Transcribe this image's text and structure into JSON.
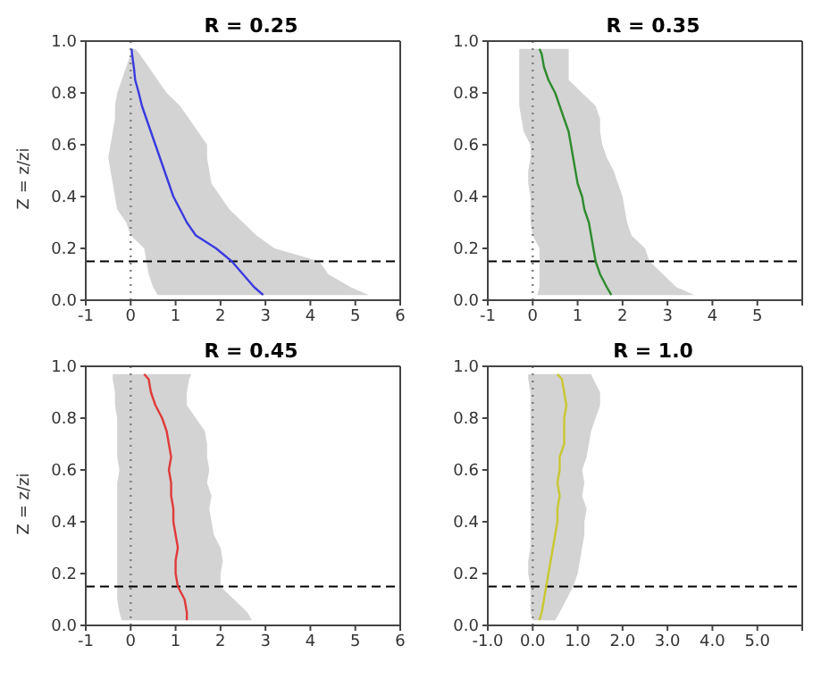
{
  "chart_data": [
    {
      "type": "line",
      "title": "R = 0.25",
      "ylabel": "Z = z/zi",
      "orientation": "horizontal",
      "x": [
        0.02,
        0.05,
        0.1,
        0.15,
        0.2,
        0.25,
        0.3,
        0.35,
        0.4,
        0.45,
        0.5,
        0.55,
        0.6,
        0.65,
        0.7,
        0.75,
        0.8,
        0.85,
        0.9,
        0.95,
        0.97
      ],
      "series": [
        {
          "color": "#3a3adf",
          "values": [
            2.95,
            2.75,
            2.5,
            2.25,
            1.9,
            1.45,
            1.25,
            1.1,
            0.95,
            0.85,
            0.75,
            0.65,
            0.55,
            0.45,
            0.35,
            0.25,
            0.18,
            0.1,
            0.07,
            0.03,
            0.02
          ],
          "lower": [
            0.6,
            0.5,
            0.4,
            0.35,
            0.3,
            0.0,
            -0.1,
            -0.3,
            -0.35,
            -0.4,
            -0.45,
            -0.5,
            -0.45,
            -0.4,
            -0.35,
            -0.35,
            -0.3,
            -0.2,
            -0.1,
            0.0,
            0.0
          ],
          "upper": [
            5.3,
            4.9,
            4.4,
            4.2,
            3.2,
            2.8,
            2.5,
            2.2,
            2.0,
            1.8,
            1.75,
            1.7,
            1.7,
            1.5,
            1.3,
            1.1,
            0.8,
            0.6,
            0.4,
            0.2,
            0.1
          ]
        }
      ],
      "xlim": [
        -1,
        6
      ],
      "xticks": [
        -1,
        0,
        1,
        2,
        3,
        4,
        5,
        6
      ],
      "ylim": [
        0,
        1
      ],
      "yticks": [
        {
          "value": 0,
          "label": "0.0"
        },
        {
          "value": 0.2,
          "label": "0.2"
        },
        {
          "value": 0.4,
          "label": "0.4"
        },
        {
          "value": 0.6,
          "label": "0.6"
        },
        {
          "value": 0.8,
          "label": "0.8"
        },
        {
          "value": 1,
          "label": "1.0"
        }
      ],
      "ref_lines": [
        {
          "axis": "x",
          "value": 0,
          "color": "#7f7f7f",
          "line_style": "dotted"
        },
        {
          "axis": "y",
          "value": 0.15,
          "color": "#000000",
          "line_style": "dashed"
        }
      ],
      "line_style": "solid",
      "marker": "none"
    },
    {
      "type": "line",
      "title": "R = 0.35",
      "orientation": "horizontal",
      "x": [
        0.02,
        0.05,
        0.1,
        0.15,
        0.2,
        0.25,
        0.3,
        0.35,
        0.4,
        0.45,
        0.5,
        0.55,
        0.6,
        0.65,
        0.7,
        0.75,
        0.8,
        0.85,
        0.9,
        0.95,
        0.97
      ],
      "series": [
        {
          "color": "#2e8b2e",
          "values": [
            1.75,
            1.65,
            1.5,
            1.4,
            1.35,
            1.3,
            1.25,
            1.15,
            1.1,
            1.0,
            0.95,
            0.9,
            0.85,
            0.8,
            0.7,
            0.6,
            0.5,
            0.35,
            0.25,
            0.2,
            0.15
          ],
          "lower": [
            0.1,
            0.15,
            0.15,
            0.15,
            0.15,
            0.0,
            -0.05,
            -0.05,
            -0.05,
            -0.1,
            -0.1,
            -0.05,
            -0.05,
            -0.2,
            -0.25,
            -0.3,
            -0.3,
            -0.3,
            -0.3,
            -0.3,
            -0.3
          ],
          "upper": [
            3.6,
            3.2,
            2.9,
            2.6,
            2.5,
            2.2,
            2.1,
            2.05,
            2.0,
            1.9,
            1.8,
            1.65,
            1.55,
            1.5,
            1.5,
            1.4,
            1.1,
            0.8,
            0.8,
            0.8,
            0.8
          ]
        }
      ],
      "xlim": [
        -1,
        6
      ],
      "xticks": [
        -1,
        0,
        1,
        2,
        3,
        4,
        5,
        {
          "value": 6,
          "label": null
        }
      ],
      "ylim": [
        0,
        1
      ],
      "yticks": [
        {
          "value": 0,
          "label": "0.0"
        },
        {
          "value": 0.2,
          "label": "0.2"
        },
        {
          "value": 0.4,
          "label": "0.4"
        },
        {
          "value": 0.6,
          "label": "0.6"
        },
        {
          "value": 0.8,
          "label": "0.8"
        },
        {
          "value": 1,
          "label": "1.0"
        }
      ],
      "ref_lines": [
        {
          "axis": "x",
          "value": 0,
          "color": "#7f7f7f",
          "line_style": "dotted"
        },
        {
          "axis": "y",
          "value": 0.15,
          "color": "#000000",
          "line_style": "dashed"
        }
      ],
      "line_style": "solid",
      "marker": "none"
    },
    {
      "type": "line",
      "title": "R = 0.45",
      "ylabel": "Z = z/zi",
      "orientation": "horizontal",
      "x": [
        0.02,
        0.05,
        0.1,
        0.15,
        0.2,
        0.25,
        0.3,
        0.35,
        0.4,
        0.45,
        0.5,
        0.55,
        0.6,
        0.65,
        0.7,
        0.75,
        0.8,
        0.85,
        0.9,
        0.95,
        0.97
      ],
      "series": [
        {
          "color": "#e03a3a",
          "values": [
            1.25,
            1.25,
            1.2,
            1.05,
            1.0,
            1.0,
            1.05,
            1.0,
            0.95,
            0.95,
            0.9,
            0.9,
            0.85,
            0.9,
            0.85,
            0.8,
            0.7,
            0.55,
            0.45,
            0.4,
            0.3
          ],
          "lower": [
            -0.2,
            -0.25,
            -0.3,
            -0.3,
            -0.3,
            -0.3,
            -0.3,
            -0.3,
            -0.3,
            -0.3,
            -0.3,
            -0.3,
            -0.25,
            -0.3,
            -0.3,
            -0.3,
            -0.3,
            -0.35,
            -0.35,
            -0.4,
            -0.4
          ],
          "upper": [
            2.7,
            2.6,
            2.3,
            2.0,
            2.0,
            2.05,
            2.0,
            1.85,
            1.8,
            1.75,
            1.8,
            1.7,
            1.75,
            1.7,
            1.7,
            1.65,
            1.45,
            1.25,
            1.25,
            1.3,
            1.35
          ]
        }
      ],
      "xlim": [
        -1,
        6
      ],
      "xticks": [
        -1,
        0,
        1,
        2,
        3,
        4,
        5,
        6
      ],
      "ylim": [
        0,
        1
      ],
      "yticks": [
        {
          "value": 0,
          "label": "0.0"
        },
        {
          "value": 0.2,
          "label": "0.2"
        },
        {
          "value": 0.4,
          "label": "0.4"
        },
        {
          "value": 0.6,
          "label": "0.6"
        },
        {
          "value": 0.8,
          "label": "0.8"
        },
        {
          "value": 1,
          "label": "1.0"
        }
      ],
      "ref_lines": [
        {
          "axis": "x",
          "value": 0,
          "color": "#7f7f7f",
          "line_style": "dotted"
        },
        {
          "axis": "y",
          "value": 0.15,
          "color": "#000000",
          "line_style": "dashed"
        }
      ],
      "line_style": "solid",
      "marker": "none"
    },
    {
      "type": "line",
      "title": "R = 1.0",
      "orientation": "horizontal",
      "x": [
        0.02,
        0.05,
        0.1,
        0.15,
        0.2,
        0.25,
        0.3,
        0.35,
        0.4,
        0.45,
        0.5,
        0.55,
        0.6,
        0.65,
        0.7,
        0.75,
        0.8,
        0.85,
        0.9,
        0.95,
        0.97
      ],
      "series": [
        {
          "color": "#c8c832",
          "values": [
            0.15,
            0.2,
            0.25,
            0.3,
            0.35,
            0.4,
            0.45,
            0.5,
            0.55,
            0.55,
            0.6,
            0.55,
            0.6,
            0.6,
            0.7,
            0.7,
            0.7,
            0.75,
            0.7,
            0.65,
            0.55
          ],
          "lower": [
            0.0,
            -0.05,
            -0.05,
            -0.05,
            -0.1,
            -0.1,
            -0.05,
            -0.05,
            -0.05,
            -0.05,
            -0.05,
            -0.05,
            -0.05,
            -0.05,
            -0.05,
            -0.05,
            -0.05,
            -0.05,
            -0.05,
            -0.1,
            -0.1
          ],
          "upper": [
            0.5,
            0.6,
            0.75,
            0.9,
            1.0,
            1.05,
            1.1,
            1.15,
            1.15,
            1.2,
            1.1,
            1.15,
            1.1,
            1.2,
            1.25,
            1.3,
            1.4,
            1.5,
            1.5,
            1.35,
            1.3
          ]
        }
      ],
      "xlim": [
        -1,
        6
      ],
      "xticks": [
        {
          "value": -1,
          "label": "-1.0"
        },
        {
          "value": 0,
          "label": "0.0"
        },
        {
          "value": 1,
          "label": "1.0"
        },
        {
          "value": 2,
          "label": "2.0"
        },
        {
          "value": 3,
          "label": "3.0"
        },
        {
          "value": 4,
          "label": "4.0"
        },
        {
          "value": 5,
          "label": "5.0"
        },
        {
          "value": 6,
          "label": null
        }
      ],
      "ylim": [
        0,
        1
      ],
      "yticks": [
        {
          "value": 0,
          "label": "0.0"
        },
        {
          "value": 0.2,
          "label": "0.2"
        },
        {
          "value": 0.4,
          "label": "0.4"
        },
        {
          "value": 0.6,
          "label": "0.6"
        },
        {
          "value": 0.8,
          "label": "0.8"
        },
        {
          "value": 1,
          "label": "1.0"
        }
      ],
      "ref_lines": [
        {
          "axis": "x",
          "value": 0,
          "color": "#7f7f7f",
          "line_style": "dotted"
        },
        {
          "axis": "y",
          "value": 0.15,
          "color": "#000000",
          "line_style": "dashed"
        }
      ],
      "line_style": "solid",
      "marker": "none"
    }
  ]
}
